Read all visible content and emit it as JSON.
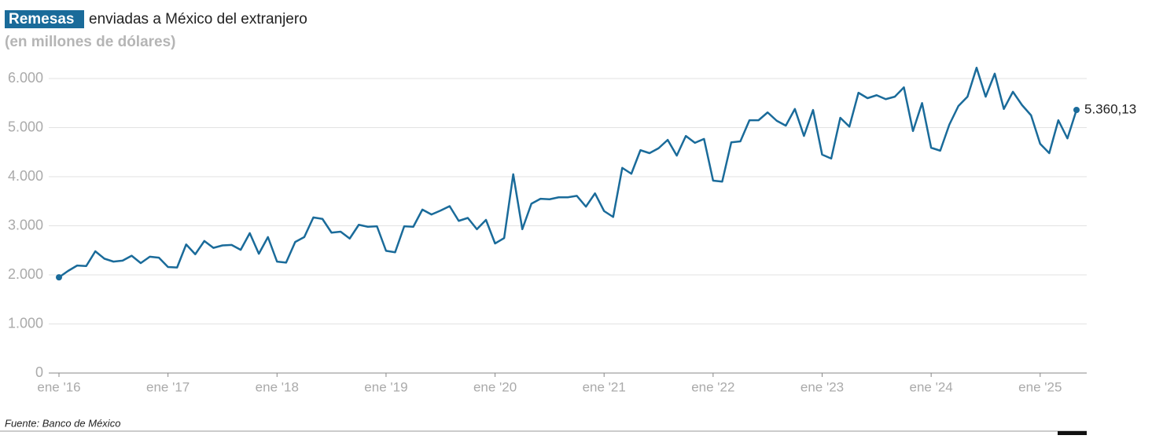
{
  "chart_data": {
    "type": "line",
    "title_highlight": "Remesas",
    "title": "enviadas a México del extranjero",
    "subtitle": "(en millones de dólares)",
    "source": "Fuente: Banco de México",
    "categories": [
      "ene '16",
      null,
      null,
      null,
      null,
      null,
      null,
      null,
      null,
      null,
      null,
      null,
      "ene '17",
      null,
      null,
      null,
      null,
      null,
      null,
      null,
      null,
      null,
      null,
      null,
      "ene '18",
      null,
      null,
      null,
      null,
      null,
      null,
      null,
      null,
      null,
      null,
      null,
      "ene '19",
      null,
      null,
      null,
      null,
      null,
      null,
      null,
      null,
      null,
      null,
      null,
      "ene '20",
      null,
      null,
      null,
      null,
      null,
      null,
      null,
      null,
      null,
      null,
      null,
      "ene '21",
      null,
      null,
      null,
      null,
      null,
      null,
      null,
      null,
      null,
      null,
      null,
      "ene '22",
      null,
      null,
      null,
      null,
      null,
      null,
      null,
      null,
      null,
      null,
      null,
      "ene '23",
      null,
      null,
      null,
      null,
      null,
      null,
      null,
      null,
      null,
      null,
      null,
      "ene '24",
      null,
      null,
      null,
      null,
      null,
      null,
      null,
      null,
      null,
      null,
      null,
      "ene '25",
      null,
      null,
      null,
      null
    ],
    "series": [
      {
        "color": "#1a6b9a",
        "values": [
          1950,
          2080,
          2190,
          2180,
          2480,
          2330,
          2270,
          2290,
          2390,
          2240,
          2370,
          2350,
          2160,
          2150,
          2620,
          2420,
          2690,
          2550,
          2600,
          2610,
          2510,
          2850,
          2430,
          2770,
          2270,
          2250,
          2670,
          2770,
          3170,
          3140,
          2860,
          2880,
          2740,
          3020,
          2980,
          2990,
          2490,
          2460,
          2990,
          2980,
          3330,
          3230,
          3310,
          3400,
          3100,
          3160,
          2930,
          3120,
          2640,
          2750,
          4050,
          2930,
          3450,
          3550,
          3540,
          3580,
          3580,
          3610,
          3390,
          3660,
          3300,
          3180,
          4180,
          4060,
          4540,
          4480,
          4580,
          4750,
          4430,
          4830,
          4690,
          4770,
          3920,
          3900,
          4700,
          4720,
          5150,
          5150,
          5310,
          5140,
          5040,
          5380,
          4830,
          5360,
          4450,
          4370,
          5200,
          5020,
          5710,
          5600,
          5660,
          5580,
          5630,
          5820,
          4930,
          5500,
          4590,
          4530,
          5060,
          5440,
          5630,
          6220,
          5630,
          6100,
          5380,
          5730,
          5460,
          5250,
          4670,
          4480,
          5150,
          4780,
          5360.13
        ],
        "value_labels": [
          null,
          null,
          null,
          null,
          null,
          null,
          null,
          null,
          null,
          null,
          null,
          null,
          null,
          null,
          null,
          null,
          null,
          null,
          null,
          null,
          null,
          null,
          null,
          null,
          null,
          null,
          null,
          null,
          null,
          null,
          null,
          null,
          null,
          null,
          null,
          null,
          null,
          null,
          null,
          null,
          null,
          null,
          null,
          null,
          null,
          null,
          null,
          null,
          null,
          null,
          null,
          null,
          null,
          null,
          null,
          null,
          null,
          null,
          null,
          null,
          null,
          null,
          null,
          null,
          null,
          null,
          null,
          null,
          null,
          null,
          null,
          null,
          null,
          null,
          null,
          null,
          null,
          null,
          null,
          null,
          null,
          null,
          null,
          null,
          null,
          null,
          null,
          null,
          null,
          null,
          null,
          null,
          null,
          null,
          null,
          null,
          null,
          null,
          null,
          null,
          null,
          null,
          null,
          null,
          null,
          null,
          null,
          null,
          null,
          null,
          null,
          null,
          "5.360,13"
        ]
      }
    ],
    "ylim": [
      0,
      6000
    ],
    "yticks": [
      0,
      {
        "value": 1000,
        "label": "1.000"
      },
      {
        "value": 2000,
        "label": "2.000"
      },
      {
        "value": 3000,
        "label": "3.000"
      },
      {
        "value": 4000,
        "label": "4.000"
      },
      {
        "value": 5000,
        "label": "5.000"
      },
      {
        "value": 6000,
        "label": "6.000"
      }
    ],
    "grid": true
  }
}
